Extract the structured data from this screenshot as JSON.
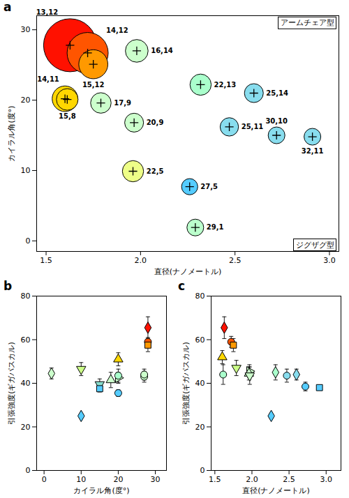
{
  "chart_data": [
    {
      "type": "bubble",
      "title": "a",
      "xlabel": "直径(ナノメートル)",
      "ylabel": "カイラル角(度°)",
      "xlim": [
        1.45,
        3.05
      ],
      "ylim": [
        -1.5,
        32
      ],
      "xticks": [
        1.5,
        {
          "value": 2,
          "label": "2.0"
        },
        2.5,
        {
          "value": 3,
          "label": "3.0"
        }
      ],
      "yticks": [
        0,
        10,
        20,
        30
      ],
      "labels": [
        "13,12",
        "14,12",
        "15,12",
        "16,14",
        "14,11",
        "17,9",
        "20,9",
        "15,8",
        "22,13",
        "25,14",
        "25,11",
        "22,5",
        "27,5",
        "29,1",
        "30,10",
        "32,11"
      ],
      "x": [
        1.627,
        1.72,
        1.75,
        1.98,
        1.6,
        1.79,
        1.966,
        1.612,
        2.318,
        2.6,
        2.47,
        1.96,
        2.26,
        2.29,
        2.72,
        2.91
      ],
      "values": [
        27.8,
        26.7,
        25.1,
        27.0,
        20.2,
        19.6,
        16.8,
        20.1,
        22.2,
        21.0,
        16.2,
        9.9,
        7.7,
        1.9,
        15.0,
        14.8
      ],
      "sizes": [
        3000,
        1800,
        900,
        550,
        700,
        450,
        380,
        500,
        480,
        380,
        360,
        480,
        280,
        300,
        300,
        300
      ],
      "colors": [
        "#FF1100",
        "#FF5500",
        "#FF9900",
        "#CCFFCC",
        "#FFD700",
        "#CCFFCC",
        "#CCFFCC",
        "#FFD700",
        "#AAFFCC",
        "#88DDEE",
        "#88DDEE",
        "#EEFF88",
        "#55CCFF",
        "#BBFFCC",
        "#88DDEE",
        "#88DDEE"
      ],
      "annotations": [
        "アームチェア型",
        "ジグザグ型"
      ]
    },
    {
      "type": "scatter",
      "title": "b",
      "xlabel": "カイラル角(度°)",
      "ylabel": "引張強度(ギガパスカル)",
      "xlim": [
        -2,
        33
      ],
      "ylim": [
        0,
        80
      ],
      "xticks": [
        0,
        10,
        20,
        30
      ],
      "yticks": [
        0,
        20,
        40,
        60,
        80
      ],
      "series": [
        {
          "x": [
            2
          ],
          "values": [
            44.5
          ],
          "errors": [
            2.5
          ],
          "color": "#CCFFCC",
          "marker": "diamond"
        },
        {
          "x": [
            10
          ],
          "values": [
            46.5
          ],
          "errors": [
            3.0
          ],
          "color": "#CCFF88",
          "marker": "triangle_down"
        },
        {
          "x": [
            10
          ],
          "values": [
            25.0
          ],
          "errors": [
            0
          ],
          "color": "#55CCFF",
          "marker": "diamond"
        },
        {
          "x": [
            15
          ],
          "values": [
            39.5
          ],
          "errors": [
            2.5
          ],
          "color": "#88DDCC",
          "marker": "triangle_down"
        },
        {
          "x": [
            15
          ],
          "values": [
            37.5
          ],
          "errors": [
            1.5
          ],
          "color": "#55CCFF",
          "marker": "square"
        },
        {
          "x": [
            18
          ],
          "values": [
            41.5
          ],
          "errors": [
            3.5
          ],
          "color": "#CCFFCC",
          "marker": "triangle_up"
        },
        {
          "x": [
            20
          ],
          "values": [
            51.0
          ],
          "errors": [
            3.0
          ],
          "color": "#FFD700",
          "marker": "triangle_up"
        },
        {
          "x": [
            20
          ],
          "values": [
            42.5
          ],
          "errors": [
            2.5
          ],
          "color": "#CCFFCC",
          "marker": "triangle_right"
        },
        {
          "x": [
            20
          ],
          "values": [
            43.5
          ],
          "errors": [
            3.0
          ],
          "color": "#AAFFCC",
          "marker": "circle"
        },
        {
          "x": [
            20
          ],
          "values": [
            35.5
          ],
          "errors": [
            1.5
          ],
          "color": "#55CCFF",
          "marker": "circle"
        },
        {
          "x": [
            27
          ],
          "values": [
            43.0
          ],
          "errors": [
            2.5
          ],
          "color": "#CCFFCC",
          "marker": "circle"
        },
        {
          "x": [
            27
          ],
          "values": [
            44.0
          ],
          "errors": [
            2.5
          ],
          "color": "#CCFFCC",
          "marker": "circle"
        },
        {
          "x": [
            28
          ],
          "values": [
            65.5
          ],
          "errors": [
            5.0
          ],
          "color": "#FF1100",
          "marker": "diamond"
        },
        {
          "x": [
            28
          ],
          "values": [
            59.0
          ],
          "errors": [
            2.0
          ],
          "color": "#FF5500",
          "marker": "circle"
        },
        {
          "x": [
            28
          ],
          "values": [
            57.5
          ],
          "errors": [
            3.0
          ],
          "color": "#FF9900",
          "marker": "square"
        }
      ]
    },
    {
      "type": "scatter",
      "title": "c",
      "xlabel": "直径(ナノメートル)",
      "ylabel": "引張強度(ギガパスカル)",
      "xlim": [
        1.45,
        3.2
      ],
      "ylim": [
        0,
        80
      ],
      "xticks": [
        1.5,
        {
          "value": 2,
          "label": "2.0"
        },
        2.5,
        {
          "value": 3,
          "label": "3.0"
        }
      ],
      "yticks": [
        0,
        20,
        40,
        60,
        80
      ],
      "series": [
        {
          "x": [
            1.627
          ],
          "values": [
            65.5
          ],
          "errors": [
            5.0
          ],
          "color": "#FF1100",
          "marker": "diamond"
        },
        {
          "x": [
            1.72
          ],
          "values": [
            59.0
          ],
          "errors": [
            2.5
          ],
          "color": "#FF5500",
          "marker": "circle"
        },
        {
          "x": [
            1.75
          ],
          "values": [
            57.5
          ],
          "errors": [
            3.0
          ],
          "color": "#FF9900",
          "marker": "square"
        },
        {
          "x": [
            1.6
          ],
          "values": [
            52.0
          ],
          "errors": [
            3.0
          ],
          "color": "#FFD700",
          "marker": "triangle_up"
        },
        {
          "x": [
            1.79
          ],
          "values": [
            47.0
          ],
          "errors": [
            3.5
          ],
          "color": "#CCFF88",
          "marker": "triangle_down"
        },
        {
          "x": [
            1.612
          ],
          "values": [
            44.0
          ],
          "errors": [
            4.5
          ],
          "color": "#AAFFCC",
          "marker": "circle"
        },
        {
          "x": [
            1.966
          ],
          "values": [
            45.5
          ],
          "errors": [
            3.0
          ],
          "color": "#CCFFCC",
          "marker": "triangle_right"
        },
        {
          "x": [
            1.96
          ],
          "values": [
            44.5
          ],
          "errors": [
            3.0
          ],
          "color": "#CCFFCC",
          "marker": "triangle_up"
        },
        {
          "x": [
            1.97
          ],
          "values": [
            43.5
          ],
          "errors": [
            4.0
          ],
          "color": "#CCFFCC",
          "marker": "triangle_down"
        },
        {
          "x": [
            2.318
          ],
          "values": [
            45.0
          ],
          "errors": [
            3.5
          ],
          "color": "#AAFFCC",
          "marker": "diamond"
        },
        {
          "x": [
            2.26
          ],
          "values": [
            25.0
          ],
          "errors": [
            0
          ],
          "color": "#55CCFF",
          "marker": "diamond"
        },
        {
          "x": [
            2.47
          ],
          "values": [
            43.5
          ],
          "errors": [
            3.0
          ],
          "color": "#88DDEE",
          "marker": "circle"
        },
        {
          "x": [
            2.6
          ],
          "values": [
            44.0
          ],
          "errors": [
            2.5
          ],
          "color": "#88DDEE",
          "marker": "diamond"
        },
        {
          "x": [
            2.72
          ],
          "values": [
            38.5
          ],
          "errors": [
            2.0
          ],
          "color": "#55CCFF",
          "marker": "circle"
        },
        {
          "x": [
            2.91
          ],
          "values": [
            38.0
          ],
          "errors": [
            0
          ],
          "color": "#55CCFF",
          "marker": "square"
        }
      ]
    }
  ]
}
